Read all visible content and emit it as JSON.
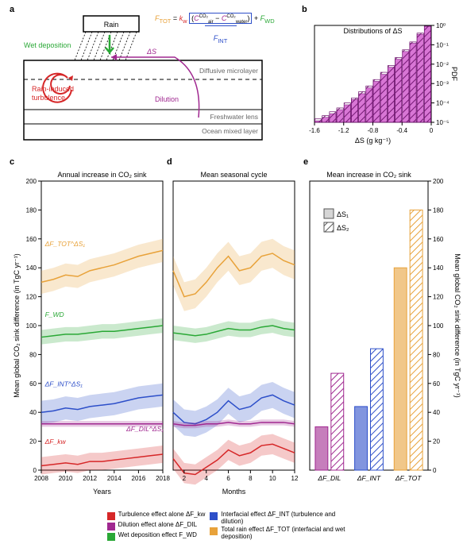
{
  "panelA": {
    "label": "a",
    "rain_label": "Rain",
    "wet_dep_label": "Wet deposition",
    "wet_dep_color": "#2aa836",
    "delta_s_label": "ΔS",
    "delta_s_color": "#a02890",
    "dilution_label": "Dilution",
    "dilution_color": "#a02890",
    "turbulence_label": "Rain-induced\nturbulence",
    "turbulence_color": "#d62728",
    "diffusive_label": "Diffusive microlayer",
    "freshwater_label": "Freshwater lens",
    "ocean_label": "Ocean mixed layer",
    "formula": {
      "F_TOT": "F_TOT",
      "F_TOT_color": "#e8a23a",
      "kw": "k_w",
      "kw_color": "#d62728",
      "Cair": "C_air^CO₂",
      "Cwater": "C_water^CO₂",
      "CO2_color": "#a02890",
      "FWD": "F_WD",
      "FWD_color": "#2aa836",
      "FINT": "F_INT",
      "FINT_color": "#2d4fc9"
    }
  },
  "panelB": {
    "label": "b",
    "title": "Distributions of ΔS",
    "xlabel": "ΔS (g kg⁻¹)",
    "ylabel": "PDF",
    "xlim": [
      -1.6,
      0
    ],
    "xticks": [
      -1.6,
      -1.2,
      -0.8,
      -0.4,
      0
    ],
    "ylog": true,
    "ylim": [
      1e-05,
      1
    ],
    "yticks": [
      1e-05,
      0.0001,
      0.001,
      0.01,
      0.1,
      1
    ],
    "ytick_labels": [
      "10⁻⁵",
      "10⁻⁴",
      "10⁻³",
      "10⁻²",
      "10⁻¹",
      "10⁰"
    ],
    "bar_color": "#c83cc3",
    "hatch_color": "#6b0f6b",
    "bins": [
      -1.55,
      -1.45,
      -1.35,
      -1.25,
      -1.15,
      -1.05,
      -0.95,
      -0.85,
      -0.75,
      -0.65,
      -0.55,
      -0.45,
      -0.35,
      -0.25,
      -0.15,
      -0.05
    ],
    "series1": [
      1.2e-05,
      1.8e-05,
      2.8e-05,
      4.5e-05,
      8e-05,
      0.00015,
      0.0003,
      0.0006,
      0.0013,
      0.003,
      0.007,
      0.018,
      0.045,
      0.12,
      0.35,
      0.9
    ],
    "series2": [
      1.5e-05,
      2.2e-05,
      3.5e-05,
      5.5e-05,
      0.0001,
      0.00018,
      0.00038,
      0.00075,
      0.0016,
      0.0038,
      0.0085,
      0.022,
      0.055,
      0.14,
      0.4,
      0.92
    ]
  },
  "panelC": {
    "label": "c",
    "title": "Annual increase in CO₂ sink",
    "xlabel": "Years",
    "ylabel": "Mean global CO₂ sink difference (in TgC yr⁻¹)",
    "xlim": [
      2008,
      2018
    ],
    "xticks": [
      2008,
      2010,
      2012,
      2014,
      2016,
      2018
    ],
    "ylim": [
      0,
      200
    ],
    "yticks": [
      0,
      20,
      40,
      60,
      80,
      100,
      120,
      140,
      160,
      180,
      200
    ],
    "years": [
      2008,
      2009,
      2010,
      2011,
      2012,
      2013,
      2014,
      2015,
      2016,
      2017,
      2018
    ],
    "series": {
      "tot": {
        "color": "#e8a23a",
        "label": "ΔF_TOT^ΔS₁",
        "values": [
          130,
          132,
          135,
          134,
          138,
          140,
          142,
          145,
          148,
          150,
          152
        ],
        "band": 8
      },
      "fwd": {
        "color": "#2aa836",
        "label": "F_WD",
        "values": [
          92,
          93,
          94,
          94,
          95,
          96,
          96,
          97,
          98,
          99,
          100
        ],
        "band": 5
      },
      "int": {
        "color": "#2d4fc9",
        "label": "ΔF_INT^ΔS₁",
        "values": [
          40,
          41,
          43,
          42,
          44,
          45,
          46,
          48,
          50,
          51,
          52
        ],
        "band": 8
      },
      "dil": {
        "color": "#a02890",
        "label": "ΔF_DIL^ΔS₁",
        "values": [
          32,
          32,
          32,
          32,
          32,
          32,
          32,
          32,
          32,
          32,
          32
        ],
        "band": 2
      },
      "kw": {
        "color": "#d62728",
        "label": "ΔF_kw",
        "values": [
          3,
          4,
          5,
          4,
          6,
          6,
          7,
          8,
          9,
          10,
          11
        ],
        "band": 6
      }
    }
  },
  "panelD": {
    "label": "d",
    "title": "Mean seasonal cycle",
    "xlabel": "Months",
    "xlim": [
      1,
      12
    ],
    "xticks": [
      2,
      4,
      6,
      8,
      10,
      12
    ],
    "ylim": [
      0,
      200
    ],
    "months": [
      1,
      2,
      3,
      4,
      5,
      6,
      7,
      8,
      9,
      10,
      11,
      12
    ],
    "series": {
      "tot": {
        "color": "#e8a23a",
        "values": [
          138,
          120,
          122,
          130,
          140,
          148,
          138,
          140,
          148,
          150,
          145,
          142
        ],
        "band": 10
      },
      "fwd": {
        "color": "#2aa836",
        "values": [
          95,
          94,
          93,
          94,
          96,
          98,
          97,
          97,
          99,
          100,
          98,
          97
        ],
        "band": 5
      },
      "int": {
        "color": "#2d4fc9",
        "values": [
          40,
          33,
          32,
          35,
          40,
          48,
          42,
          44,
          50,
          52,
          48,
          45
        ],
        "band": 9
      },
      "dil": {
        "color": "#a02890",
        "values": [
          32,
          31,
          31,
          32,
          32,
          33,
          32,
          32,
          33,
          33,
          33,
          32
        ],
        "band": 2
      },
      "kw": {
        "color": "#d62728",
        "values": [
          8,
          -2,
          -3,
          2,
          7,
          14,
          10,
          12,
          17,
          18,
          15,
          12
        ],
        "band": 7
      }
    }
  },
  "panelE": {
    "label": "e",
    "title": "Mean increase in CO₂ sink",
    "ylabel": "Mean global CO₂ sink difference (in TgC yr⁻¹)",
    "ylim": [
      0,
      200
    ],
    "yticks": [
      0,
      20,
      40,
      60,
      80,
      100,
      120,
      140,
      160,
      180,
      200
    ],
    "categories": [
      "ΔF_DIL",
      "ΔF_INT",
      "ΔF_TOT"
    ],
    "colors": [
      "#a02890",
      "#2d4fc9",
      "#e8a23a"
    ],
    "s1": [
      30,
      44,
      140
    ],
    "s2": [
      67,
      84,
      180
    ],
    "legend_s1": "ΔS₁",
    "legend_s2": "ΔS₂"
  },
  "legend": {
    "items": [
      {
        "color": "#d62728",
        "label": "Turbulence effect alone ΔF_kw"
      },
      {
        "color": "#a02890",
        "label": "Dilution effect alone ΔF_DIL"
      },
      {
        "color": "#2aa836",
        "label": "Wet deposition effect F_WD"
      },
      {
        "color": "#2d4fc9",
        "label": "Interfacial effect ΔF_INT (turbulence and dilution)"
      },
      {
        "color": "#e8a23a",
        "label": "Total rain effect ΔF_TOT (interfacial and wet deposition)"
      }
    ]
  },
  "layout": {
    "bg": "#ffffff",
    "grid_color": "#e0e0e0",
    "text_color": "#000000"
  }
}
